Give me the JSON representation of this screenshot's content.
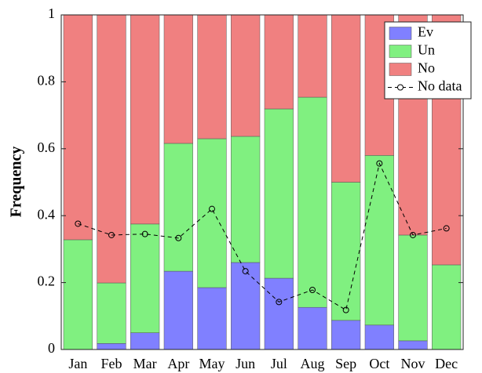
{
  "chart_data": {
    "type": "bar",
    "stacked": true,
    "ylabel": "Frequency",
    "categories": [
      "Jan",
      "Feb",
      "Mar",
      "Apr",
      "May",
      "Jun",
      "Jul",
      "Aug",
      "Sep",
      "Oct",
      "Nov",
      "Dec"
    ],
    "series": [
      {
        "name": "Ev",
        "type": "bar",
        "color": "#8080ff",
        "values": [
          0,
          0.018,
          0.05,
          0.234,
          0.185,
          0.26,
          0.213,
          0.126,
          0.087,
          0.073,
          0.026,
          0
        ]
      },
      {
        "name": "Un",
        "type": "bar",
        "color": "#80f080",
        "values": [
          0.328,
          0.181,
          0.325,
          0.382,
          0.445,
          0.377,
          0.506,
          0.628,
          0.413,
          0.507,
          0.316,
          0.253
        ]
      },
      {
        "name": "No",
        "type": "bar",
        "color": "#f08080",
        "values": [
          0.672,
          0.801,
          0.625,
          0.384,
          0.37,
          0.363,
          0.281,
          0.246,
          0.5,
          0.42,
          0.658,
          0.747
        ]
      },
      {
        "name": "No data",
        "type": "line",
        "color": "#000000",
        "values": [
          0.376,
          0.342,
          0.345,
          0.333,
          0.42,
          0.234,
          0.142,
          0.178,
          0.118,
          0.556,
          0.342,
          0.362
        ]
      }
    ],
    "ylim": [
      0,
      1
    ],
    "yticks": [
      0,
      0.2,
      0.4,
      0.6,
      0.8,
      1
    ],
    "legend": "upper right"
  }
}
